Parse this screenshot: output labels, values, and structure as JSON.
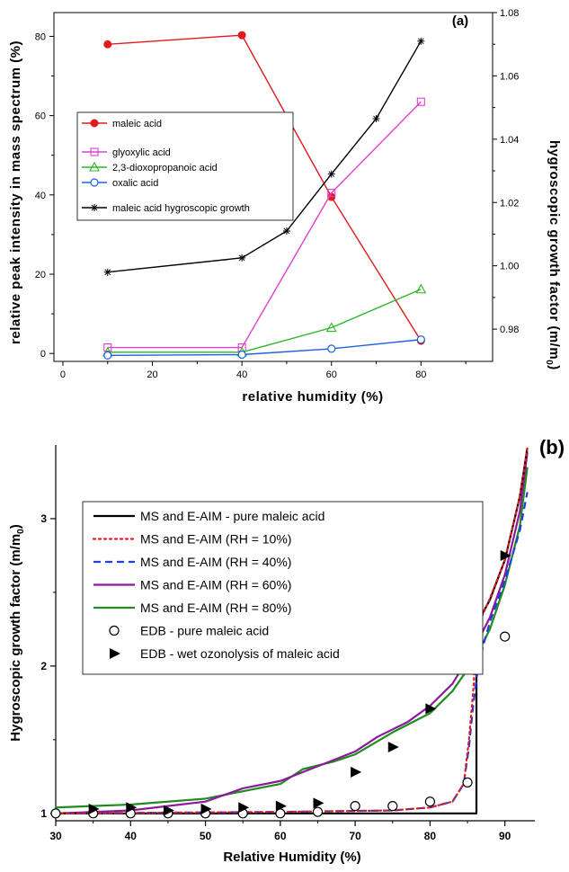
{
  "chart_data": [
    {
      "panel_label": "(a)",
      "type": "line",
      "xlabel": "relative humidity (%)",
      "ylabel": "relative peak intensity in mass spectrum (%)",
      "y2label": "hygroscopic growth factor (m/m",
      "y2label_sub": "0",
      "y2label_end": ")",
      "xlim": [
        -2,
        96
      ],
      "ylim": [
        -2,
        86
      ],
      "y2lim": [
        0.9698,
        1.08
      ],
      "x_ticks": [
        0,
        20,
        40,
        60,
        80
      ],
      "y_ticks": [
        0,
        20,
        40,
        60,
        80
      ],
      "y2_ticks": [
        "0.98",
        "1.00",
        "1.02",
        "1.04",
        "1.06",
        "1.08"
      ],
      "legend_position": "middle-left",
      "series": [
        {
          "name": "maleic acid",
          "axis": "left",
          "color": "#e31a1c",
          "marker": "filled-circle",
          "x": [
            10,
            40,
            60,
            80
          ],
          "y": [
            78,
            80.3,
            39.5,
            3.2
          ]
        },
        {
          "name": "glyoxylic acid",
          "axis": "left",
          "color": "#e040d0",
          "marker": "open-square",
          "x": [
            10,
            40,
            60,
            80
          ],
          "y": [
            1.5,
            1.5,
            40.5,
            63.5
          ]
        },
        {
          "name": "2,3-dioxopropanoic acid",
          "axis": "left",
          "color": "#2ab52a",
          "marker": "open-triangle",
          "x": [
            10,
            40,
            60,
            80
          ],
          "y": [
            0.3,
            0.3,
            6.5,
            16.2
          ]
        },
        {
          "name": "oxalic acid",
          "axis": "left",
          "color": "#1f5fe0",
          "marker": "open-circle",
          "x": [
            10,
            40,
            60,
            80
          ],
          "y": [
            -0.5,
            -0.3,
            1.2,
            3.5
          ]
        },
        {
          "name": "maleic acid hygroscopic growth",
          "axis": "right",
          "color": "#000000",
          "marker": "star",
          "x": [
            10,
            40,
            50,
            60,
            70,
            80
          ],
          "y": [
            0.998,
            1.0025,
            1.011,
            1.029,
            1.0465,
            1.071
          ]
        }
      ]
    },
    {
      "panel_label": "(b)",
      "type": "line",
      "xlabel": "Relative Humidity (%)",
      "ylabel": "Hygroscopic growth factor (m/m",
      "ylabel_sub": "0",
      "ylabel_end": ")",
      "xlim": [
        30,
        94
      ],
      "ylim": [
        0.95,
        3.5
      ],
      "x_ticks": [
        30,
        40,
        50,
        60,
        70,
        80,
        90
      ],
      "y_ticks": [
        1,
        2,
        3
      ],
      "legend_position": "top-left",
      "series": [
        {
          "name": "MS and E-AIM - pure maleic acid",
          "color": "#000000",
          "style": "solid",
          "x": [
            30,
            86.2,
            86.2,
            88,
            90,
            92,
            93
          ],
          "y": [
            1.0,
            1.0,
            2.28,
            2.45,
            2.72,
            3.15,
            3.48
          ]
        },
        {
          "name": "MS and E-AIM (RH = 10%)",
          "color": "#e31a1c",
          "style": "dotted",
          "x": [
            30,
            60,
            75,
            80,
            83,
            84.5,
            85.2,
            85.8,
            86.2,
            86.8,
            88,
            90,
            92,
            93
          ],
          "y": [
            1.0,
            1.01,
            1.02,
            1.04,
            1.08,
            1.2,
            1.5,
            1.85,
            2.2,
            2.32,
            2.46,
            2.72,
            3.15,
            3.48
          ]
        },
        {
          "name": "MS and E-AIM (RH = 40%)",
          "color": "#1f3fe0",
          "style": "dashed",
          "x": [
            30,
            60,
            75,
            80,
            83,
            84.5,
            85.2,
            85.8,
            86.3,
            87,
            88,
            90,
            92,
            93
          ],
          "y": [
            1.0,
            1.01,
            1.02,
            1.04,
            1.08,
            1.2,
            1.45,
            1.75,
            1.95,
            2.12,
            2.3,
            2.58,
            2.92,
            3.18
          ]
        },
        {
          "name": "MS and E-AIM (RH = 60%)",
          "color": "#8b1a9b",
          "style": "solid",
          "x": [
            30,
            40,
            50,
            55,
            60,
            65,
            70,
            73,
            77,
            80,
            83,
            86,
            88,
            90,
            92,
            93
          ],
          "y": [
            1.0,
            1.02,
            1.08,
            1.17,
            1.22,
            1.32,
            1.42,
            1.52,
            1.62,
            1.73,
            1.88,
            2.13,
            2.33,
            2.62,
            3.05,
            3.45
          ]
        },
        {
          "name": "MS and E-AIM (RH = 80%)",
          "color": "#1e8c1e",
          "style": "solid",
          "x": [
            30,
            40,
            50,
            55,
            60,
            63,
            67,
            70,
            75,
            80,
            83,
            86,
            88,
            90,
            92,
            93
          ],
          "y": [
            1.04,
            1.06,
            1.1,
            1.15,
            1.2,
            1.3,
            1.35,
            1.4,
            1.55,
            1.68,
            1.83,
            2.05,
            2.25,
            2.55,
            2.95,
            3.35
          ]
        },
        {
          "name": "EDB - pure maleic acid",
          "color": "#000000",
          "marker": "open-circle",
          "x": [
            30,
            35,
            40,
            45,
            50,
            55,
            60,
            65,
            70,
            75,
            80,
            85,
            90
          ],
          "y": [
            1.0,
            1.0,
            1.0,
            1.0,
            1.0,
            1.0,
            1.0,
            1.01,
            1.05,
            1.05,
            1.08,
            1.21,
            2.2
          ]
        },
        {
          "name": "EDB - wet ozonolysis of maleic acid",
          "color": "#000000",
          "marker": "filled-triangle-right",
          "x": [
            35,
            40,
            45,
            50,
            55,
            60,
            65,
            70,
            75,
            80,
            85,
            90
          ],
          "y": [
            1.03,
            1.04,
            1.02,
            1.03,
            1.04,
            1.05,
            1.07,
            1.28,
            1.45,
            1.71,
            2.0,
            2.75
          ]
        }
      ]
    }
  ]
}
